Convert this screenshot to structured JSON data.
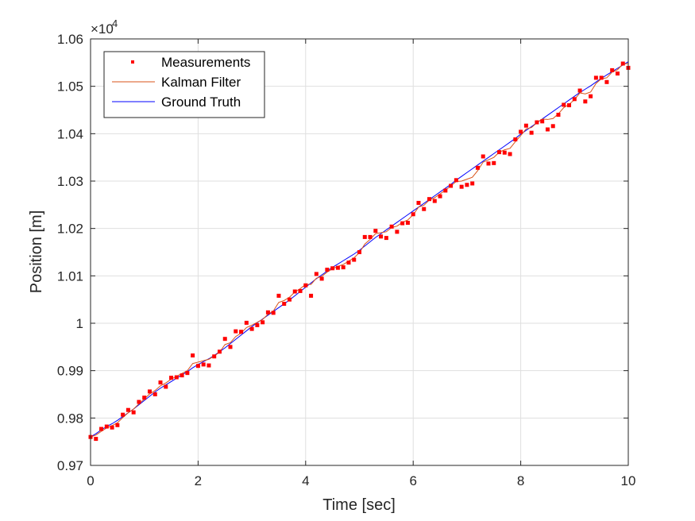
{
  "chart_data": {
    "type": "line",
    "xlabel": "Time [sec]",
    "ylabel": "Position [m]",
    "y_exponent_base": "×10",
    "y_exponent_power": "4",
    "xlim": [
      0,
      10
    ],
    "ylim": [
      0.97,
      1.06
    ],
    "y_multiplier": 10000,
    "x_ticks": [
      0,
      2,
      4,
      6,
      8,
      10
    ],
    "x_tick_labels": [
      "0",
      "2",
      "4",
      "6",
      "8",
      "10"
    ],
    "y_ticks": [
      0.97,
      0.98,
      0.99,
      1.0,
      1.01,
      1.02,
      1.03,
      1.04,
      1.05,
      1.06
    ],
    "y_tick_labels": [
      "0.97",
      "0.98",
      "0.99",
      "1",
      "1.01",
      "1.02",
      "1.03",
      "1.04",
      "1.05",
      "1.06"
    ],
    "grid": true,
    "legend_position": "top-left",
    "x": [
      0,
      0.1,
      0.2,
      0.3,
      0.4,
      0.5,
      0.6,
      0.7,
      0.8,
      0.9,
      1.0,
      1.1,
      1.2,
      1.3,
      1.4,
      1.5,
      1.6,
      1.7,
      1.8,
      1.9,
      2.0,
      2.1,
      2.2,
      2.3,
      2.4,
      2.5,
      2.6,
      2.7,
      2.8,
      2.9,
      3.0,
      3.1,
      3.2,
      3.3,
      3.4,
      3.5,
      3.6,
      3.7,
      3.8,
      3.9,
      4.0,
      4.1,
      4.2,
      4.3,
      4.4,
      4.5,
      4.6,
      4.7,
      4.8,
      4.9,
      5.0,
      5.1,
      5.2,
      5.3,
      5.4,
      5.5,
      5.6,
      5.7,
      5.8,
      5.9,
      6.0,
      6.1,
      6.2,
      6.3,
      6.4,
      6.5,
      6.6,
      6.7,
      6.8,
      6.9,
      7.0,
      7.1,
      7.2,
      7.3,
      7.4,
      7.5,
      7.6,
      7.7,
      7.8,
      7.9,
      8.0,
      8.1,
      8.2,
      8.3,
      8.4,
      8.5,
      8.6,
      8.7,
      8.8,
      8.9,
      9.0,
      9.1,
      9.2,
      9.3,
      9.4,
      9.5,
      9.6,
      9.7,
      9.8,
      9.9,
      10.0
    ],
    "series": [
      {
        "name": "Measurements",
        "style": "markers",
        "color": "#ff0000",
        "values": [
          9760,
          9756,
          9777,
          9782,
          9780,
          9785,
          9807,
          9817,
          9812,
          9834,
          9843,
          9856,
          9850,
          9875,
          9866,
          9885,
          9886,
          9890,
          9895,
          9932,
          9910,
          9913,
          9911,
          9930,
          9940,
          9967,
          9950,
          9983,
          9982,
          10001,
          9988,
          9996,
          10002,
          10023,
          10022,
          10058,
          10041,
          10050,
          10067,
          10068,
          10080,
          10058,
          10104,
          10094,
          10113,
          10116,
          10117,
          10118,
          10128,
          10134,
          10150,
          10182,
          10182,
          10195,
          10183,
          10180,
          10204,
          10193,
          10211,
          10212,
          10230,
          10254,
          10241,
          10262,
          10258,
          10268,
          10280,
          10290,
          10302,
          10288,
          10292,
          10295,
          10328,
          10352,
          10337,
          10338,
          10361,
          10360,
          10357,
          10388,
          10404,
          10417,
          10402,
          10424,
          10426,
          10409,
          10416,
          10440,
          10461,
          10460,
          10473,
          10491,
          10468,
          10479,
          10518,
          10518,
          10509,
          10534,
          10527,
          10548,
          10539
        ]
      },
      {
        "name": "Kalman Filter",
        "style": "line",
        "color": "#d95319",
        "values": [
          9760,
          9764,
          9772,
          9779,
          9784,
          9790,
          9801,
          9811,
          9819,
          9830,
          9840,
          9851,
          9858,
          9868,
          9874,
          9882,
          9888,
          9894,
          9900,
          9915,
          9918,
          9921,
          9924,
          9931,
          9939,
          9955,
          9959,
          9972,
          9979,
          9991,
          9996,
          10002,
          10008,
          10019,
          10026,
          10044,
          10048,
          10055,
          10066,
          10073,
          10082,
          10082,
          10095,
          10099,
          10108,
          10115,
          10120,
          10124,
          10131,
          10138,
          10149,
          10167,
          10177,
          10189,
          10191,
          10193,
          10202,
          10205,
          10213,
          10218,
          10229,
          10245,
          10249,
          10260,
          10265,
          10273,
          10281,
          10290,
          10299,
          10300,
          10304,
          10308,
          10322,
          10340,
          10345,
          10350,
          10361,
          10366,
          10369,
          10383,
          10396,
          10410,
          10413,
          10423,
          10431,
          10430,
          10432,
          10442,
          10455,
          10462,
          10472,
          10486,
          10484,
          10488,
          10506,
          10516,
          10518,
          10530,
          10535,
          10547,
          10548
        ]
      },
      {
        "name": "Ground Truth",
        "style": "line",
        "color": "#0000ff",
        "values": [
          9760,
          9767,
          9775,
          9782,
          9788,
          9795,
          9803,
          9811,
          9819,
          9828,
          9837,
          9846,
          9855,
          9863,
          9870,
          9877,
          9884,
          9891,
          9898,
          9906,
          9913,
          9919,
          9925,
          9932,
          9940,
          9948,
          9957,
          9966,
          9975,
          9984,
          9993,
          10001,
          10009,
          10017,
          10025,
          10033,
          10041,
          10049,
          10058,
          10067,
          10076,
          10085,
          10094,
          10102,
          10110,
          10118,
          10125,
          10132,
          10139,
          10146,
          10154,
          10163,
          10172,
          10181,
          10189,
          10197,
          10205,
          10213,
          10221,
          10229,
          10237,
          10245,
          10253,
          10261,
          10269,
          10277,
          10285,
          10293,
          10302,
          10310,
          10318,
          10326,
          10334,
          10342,
          10350,
          10358,
          10366,
          10374,
          10382,
          10390,
          10399,
          10407,
          10415,
          10423,
          10431,
          10439,
          10447,
          10455,
          10463,
          10471,
          10479,
          10487,
          10494,
          10501,
          10509,
          10517,
          10524,
          10531,
          10538,
          10545,
          10552
        ]
      }
    ]
  }
}
